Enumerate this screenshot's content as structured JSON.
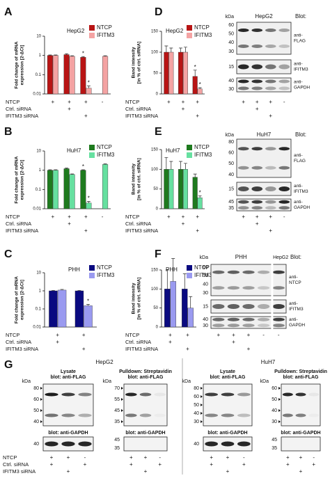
{
  "chart_data": [
    {
      "type": "bar",
      "label": "A",
      "annotation": "HepG2",
      "annotation_color": "#e31a1c",
      "ylabel": [
        "Fold change of mRNA",
        "expression [2-ΔCt]"
      ],
      "ylog": true,
      "ylim": [
        0.01,
        10
      ],
      "yticks": [
        0.01,
        0.1,
        1,
        10
      ],
      "categories": [
        null,
        null,
        null,
        null
      ],
      "series": [
        {
          "name": "NTCP",
          "color": "#b81414",
          "values": [
            1,
            1.1,
            0.8,
            null
          ],
          "errors": [
            0.06,
            0.12,
            0.08,
            null
          ],
          "labels": [
            null,
            null,
            "*",
            null
          ]
        },
        {
          "name": "IFITM3",
          "color": "#f4a3a3",
          "values": [
            1,
            0.9,
            0.02,
            0.9
          ],
          "errors": [
            0.06,
            0.06,
            0.006,
            0.06
          ],
          "labels": [
            null,
            null,
            "*",
            null
          ]
        }
      ],
      "conditions": [
        {
          "name": "NTCP",
          "marks": [
            "+",
            "+",
            "+",
            "-"
          ]
        },
        {
          "name": "Ctrl. siRNA",
          "marks": [
            null,
            "+",
            null,
            null
          ]
        },
        {
          "name": "IFITM3 siRNA",
          "marks": [
            null,
            null,
            "+",
            null
          ]
        }
      ]
    },
    {
      "type": "bar",
      "label": "D",
      "annotation": "HepG2",
      "annotation_color": "#e31a1c",
      "ylabel": [
        "Band intensity",
        "[in % of ctrl. siRNA]"
      ],
      "ylog": false,
      "ylim": [
        0,
        150
      ],
      "yticks": [
        0,
        50,
        100,
        150
      ],
      "categories": [
        null,
        null,
        null
      ],
      "series": [
        {
          "name": "NTCP",
          "color": "#b81414",
          "values": [
            100,
            100,
            42
          ],
          "errors": [
            15,
            10,
            15
          ],
          "labels": [
            null,
            null,
            "*"
          ]
        },
        {
          "name": "IFITM3",
          "color": "#f4a3a3",
          "values": [
            100,
            100,
            12
          ],
          "errors": [
            10,
            12,
            3
          ],
          "labels": [
            null,
            null,
            "*"
          ]
        }
      ],
      "conditions": [
        {
          "name": "NTCP",
          "marks": [
            "+",
            "+",
            "+"
          ]
        },
        {
          "name": "Ctrl. siRNA",
          "marks": [
            null,
            "+",
            null
          ]
        },
        {
          "name": "IFITM3 siRNA",
          "marks": [
            null,
            null,
            "+"
          ]
        }
      ]
    },
    {
      "type": "bar",
      "label": "B",
      "annotation": "HuH7",
      "annotation_color": "#1e8c1e",
      "ylabel": [
        "Fold change of mRNA",
        "expression [2-ΔCt]"
      ],
      "ylog": true,
      "ylim": [
        0.01,
        10
      ],
      "yticks": [
        0.01,
        0.1,
        1,
        10
      ],
      "categories": [
        null,
        null,
        null,
        null
      ],
      "series": [
        {
          "name": "NTCP",
          "color": "#1e7a1e",
          "values": [
            1,
            1.2,
            1,
            null
          ],
          "errors": [
            0.06,
            0.1,
            0.06,
            null
          ],
          "labels": [
            null,
            null,
            "*",
            null
          ]
        },
        {
          "name": "IFITM3",
          "color": "#66e0a0",
          "values": [
            1,
            0.6,
            0.02,
            2
          ],
          "errors": [
            0.06,
            0.04,
            0.004,
            0.15
          ],
          "labels": [
            null,
            null,
            "*",
            null
          ]
        }
      ],
      "conditions": [
        {
          "name": "NTCP",
          "marks": [
            "+",
            "+",
            "+",
            "-"
          ]
        },
        {
          "name": "Ctrl. siRNA",
          "marks": [
            null,
            "+",
            null,
            null
          ]
        },
        {
          "name": "IFITM3 siRNA",
          "marks": [
            null,
            null,
            "+",
            null
          ]
        }
      ]
    },
    {
      "type": "bar",
      "label": "E",
      "annotation": "HuH7",
      "annotation_color": "#1e8c1e",
      "ylabel": [
        "Band intensity",
        "[in % of ctrl. siRNA]"
      ],
      "ylog": false,
      "ylim": [
        0,
        150
      ],
      "yticks": [
        0,
        50,
        100,
        150
      ],
      "categories": [
        null,
        null,
        null
      ],
      "series": [
        {
          "name": "NTCP",
          "color": "#1e7a1e",
          "values": [
            100,
            100,
            80
          ],
          "errors": [
            30,
            20,
            8
          ],
          "labels": [
            null,
            null,
            null
          ]
        },
        {
          "name": "IFITM3",
          "color": "#66e0a0",
          "values": [
            100,
            100,
            28
          ],
          "errors": [
            20,
            15,
            5
          ],
          "labels": [
            null,
            null,
            "*"
          ]
        }
      ],
      "conditions": [
        {
          "name": "NTCP",
          "marks": [
            "+",
            "+",
            "+"
          ]
        },
        {
          "name": "Ctrl. siRNA",
          "marks": [
            null,
            "+",
            null
          ]
        },
        {
          "name": "IFITM3 siRNA",
          "marks": [
            null,
            null,
            "+"
          ]
        }
      ]
    },
    {
      "type": "bar",
      "label": "C",
      "annotation": "PHH",
      "annotation_color": "#1a1a8c",
      "ylabel": [
        "Fold change of mRNA",
        "expression [2-ΔCt]"
      ],
      "ylog": true,
      "ylim": [
        0.01,
        10
      ],
      "yticks": [
        0.01,
        0.1,
        1,
        10
      ],
      "categories": [
        null,
        null
      ],
      "series": [
        {
          "name": "NTCP",
          "color": "#0a0a80",
          "values": [
            1,
            1
          ],
          "errors": [
            0.05,
            0.05
          ],
          "labels": [
            null,
            null
          ]
        },
        {
          "name": "IFITM3",
          "color": "#9a9af0",
          "values": [
            1.1,
            0.15
          ],
          "errors": [
            0.1,
            0.03
          ],
          "labels": [
            null,
            "*"
          ]
        }
      ],
      "conditions": [
        {
          "name": "NTCP",
          "marks": [
            "+",
            "+"
          ]
        },
        {
          "name": "Ctrl. siRNA",
          "marks": [
            "+",
            null
          ]
        },
        {
          "name": "IFITM3 siRNA",
          "marks": [
            null,
            "+"
          ]
        }
      ]
    },
    {
      "type": "bar",
      "label": "F",
      "annotation": "PHH",
      "annotation_color": "#1a1a8c",
      "ylabel": [
        "Band intensity",
        "[in % of ctrl. siRNA]"
      ],
      "ylog": false,
      "ylim": [
        0,
        150
      ],
      "yticks": [
        0,
        50,
        100,
        150
      ],
      "categories": [
        null,
        null
      ],
      "series": [
        {
          "name": "NTCP",
          "color": "#0a0a80",
          "values": [
            100,
            100
          ],
          "errors": [
            50,
            40
          ],
          "labels": [
            null,
            null
          ]
        },
        {
          "name": "IFITM3",
          "color": "#9a9af0",
          "values": [
            120,
            50
          ],
          "errors": [
            60,
            30
          ],
          "labels": [
            null,
            null
          ]
        }
      ],
      "conditions": [
        {
          "name": "NTCP",
          "marks": [
            "+",
            "+"
          ]
        },
        {
          "name": "Ctrl. siRNA",
          "marks": [
            "+",
            null
          ]
        },
        {
          "name": "IFITM3 siRNA",
          "marks": [
            null,
            "+"
          ]
        }
      ]
    }
  ],
  "blots": [
    {
      "title": "HepG2",
      "title_color": "#e31a1c",
      "kda": "kDa",
      "heading": "Blot:",
      "strips": [
        {
          "markers": [
            "60",
            "50",
            "40",
            "30"
          ],
          "label": [
            "anti-",
            "FLAG"
          ]
        },
        {
          "markers": [
            "15"
          ],
          "label": [
            "anti-",
            "IFITM3"
          ]
        },
        {
          "markers": [
            "40",
            "30"
          ],
          "label": [
            "anti-",
            "GAPDH"
          ]
        }
      ],
      "lanes": [
        [
          "+",
          "+",
          "+",
          "-"
        ],
        [
          null,
          "+",
          null,
          null
        ],
        [
          null,
          null,
          "+",
          null
        ]
      ]
    },
    {
      "title": "HuH7",
      "title_color": "#1e8c1e",
      "kda": "kDa",
      "heading": "Blot:",
      "strips": [
        {
          "markers": [
            "80",
            "60",
            "50",
            "40"
          ],
          "label": [
            "anti-",
            "FLAG"
          ]
        },
        {
          "markers": [
            "15"
          ],
          "label": [
            "anti-",
            "IFITM3"
          ]
        },
        {
          "markers": [
            "45",
            "35"
          ],
          "label": [
            "anti-",
            "GAPDH"
          ]
        }
      ],
      "lanes": [
        [
          "+",
          "+",
          "+",
          "-"
        ],
        [
          null,
          "+",
          null,
          null
        ],
        [
          null,
          null,
          "+",
          null
        ]
      ]
    },
    {
      "title": "PHH",
      "title_color": "#1a1a8c",
      "title2": "HepG2",
      "kda": "kDa",
      "heading": "Blot:",
      "strips": [
        {
          "markers": [
            "60",
            "50",
            "40",
            "30"
          ],
          "label": [
            "anti-",
            "NTCP"
          ]
        },
        {
          "markers": [
            "15"
          ],
          "label": [
            "anti-",
            "IFITM3"
          ]
        },
        {
          "markers": [
            "40",
            "30"
          ],
          "label": [
            "anti-",
            "GAPDH"
          ]
        }
      ],
      "lanes": [
        [
          "+",
          "+",
          "+",
          "-",
          "-"
        ],
        [
          null,
          "+",
          null,
          null,
          null
        ],
        [
          null,
          null,
          "+",
          null,
          null
        ]
      ]
    }
  ],
  "panel_g": {
    "label": "G",
    "kda": "kDa",
    "row_names": [
      "NTCP",
      "Ctrl. siRNA",
      "IFITM3 siRNA"
    ],
    "lanes": [
      [
        "+",
        "+",
        "-"
      ],
      [
        "+",
        null,
        "+"
      ],
      [
        null,
        "+",
        null
      ]
    ],
    "sections": [
      {
        "title": "HepG2",
        "color": "#e31a1c",
        "blots": [
          {
            "title": [
              "Lysate",
              "blot: anti-FLAG"
            ],
            "markers": [
              "80",
              "60",
              "50",
              "40"
            ],
            "lower_title": "blot: anti-GAPDH",
            "lower_markers": [
              "40"
            ]
          },
          {
            "title": [
              "Pulldown: Streptavidin",
              "blot: anti-FLAG"
            ],
            "markers": [
              "70",
              "55",
              "45",
              "35"
            ],
            "lower_title": "blot: anti-GAPDH",
            "lower_markers": [
              "45",
              "35"
            ]
          }
        ]
      },
      {
        "title": "HuH7",
        "color": "#1e8c1e",
        "blots": [
          {
            "title": [
              "Lysate",
              "blot: anti-FLAG"
            ],
            "markers": [
              "80",
              "60",
              "50",
              "40",
              "30"
            ],
            "lower_title": "blot: anti-GAPDH",
            "lower_markers": [
              "40"
            ]
          },
          {
            "title": [
              "Pulldown: Streptavidin",
              "blot: anti-FLAG"
            ],
            "markers": [
              "60",
              "50",
              "40",
              "30"
            ],
            "lower_title": "blot: anti-GAPDH",
            "lower_markers": [
              "45",
              "35"
            ]
          }
        ]
      }
    ]
  }
}
